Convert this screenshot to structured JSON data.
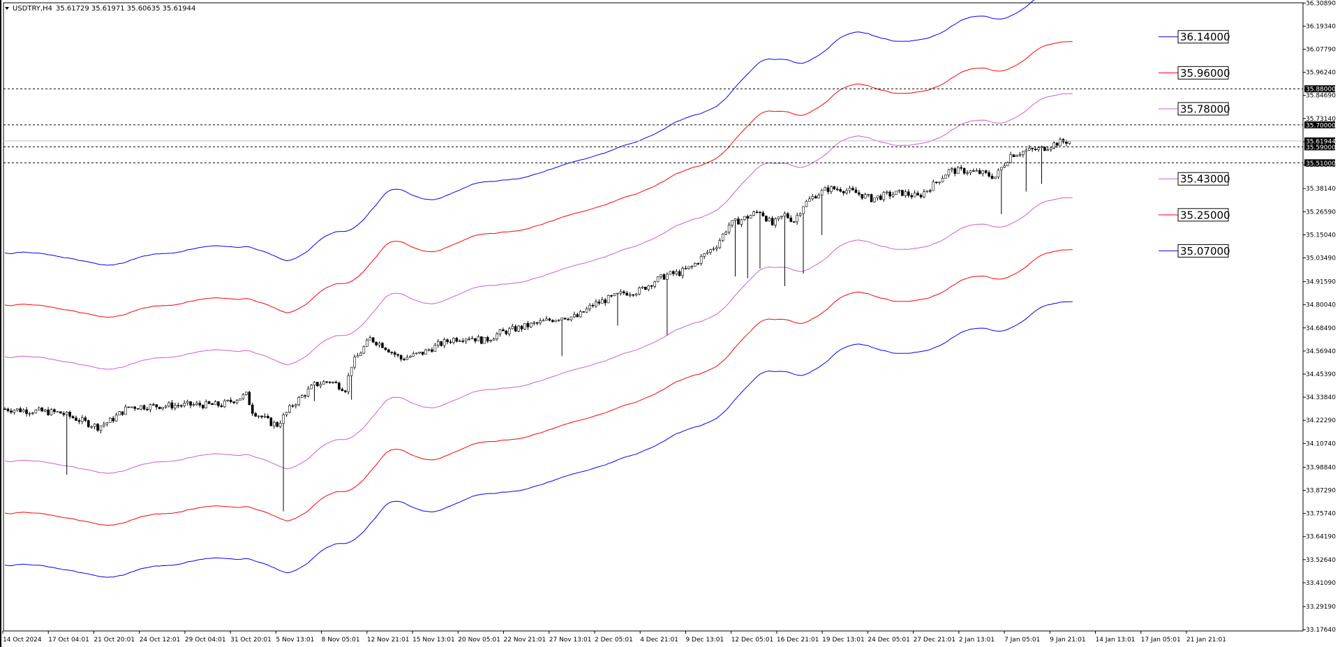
{
  "header": {
    "symbol": "USDTRY,H4",
    "ohlc": "35.61729 35.61971 35.60635 35.61944"
  },
  "chart_data": {
    "type": "candlestick",
    "title": "USDTRY,H4",
    "ohlc_last": {
      "open": 35.61729,
      "high": 35.61971,
      "low": 35.60635,
      "close": 35.61944
    },
    "ylim": [
      33.17,
      36.31
    ],
    "y_ticks": [
      "36.30890",
      "36.19340",
      "36.07790",
      "35.96240",
      "35.84690",
      "35.73140",
      "35.61590",
      "35.50040",
      "35.38140",
      "35.26590",
      "35.15040",
      "35.03490",
      "34.91590",
      "34.80040",
      "34.68490",
      "34.56940",
      "34.45390",
      "34.33840",
      "34.22290",
      "34.10740",
      "33.98840",
      "33.87290",
      "33.75740",
      "33.64190",
      "33.52640",
      "33.41090",
      "33.29190",
      "33.17640"
    ],
    "x_ticks": [
      "14 Oct 2024",
      "17 Oct 04:01",
      "21 Oct 20:01",
      "24 Oct 12:01",
      "29 Oct 04:01",
      "31 Oct 20:01",
      "5 Nov 13:01",
      "8 Nov 05:01",
      "12 Nov 21:01",
      "15 Nov 13:01",
      "20 Nov 05:01",
      "22 Nov 21:01",
      "27 Nov 13:01",
      "2 Dec 05:01",
      "4 Dec 21:01",
      "9 Dec 13:01",
      "12 Dec 05:01",
      "16 Dec 21:01",
      "19 Dec 13:01",
      "24 Dec 05:01",
      "27 Dec 21:01",
      "2 Jan 13:01",
      "7 Jan 05:01",
      "9 Jan 21:01",
      "14 Jan 13:01",
      "17 Jan 05:01",
      "21 Jan 21:01"
    ],
    "bars_count": 380,
    "price_path": [
      [
        0,
        34.28
      ],
      [
        18,
        34.26
      ],
      [
        30,
        34.19
      ],
      [
        34,
        34.22
      ],
      [
        40,
        34.29
      ],
      [
        60,
        34.3
      ],
      [
        70,
        34.3
      ],
      [
        78,
        34.35
      ],
      [
        80,
        34.27
      ],
      [
        86,
        34.21
      ],
      [
        88,
        34.2
      ],
      [
        93,
        34.3
      ],
      [
        100,
        34.4
      ],
      [
        105,
        34.42
      ],
      [
        110,
        34.38
      ],
      [
        112,
        34.5
      ],
      [
        118,
        34.63
      ],
      [
        122,
        34.6
      ],
      [
        128,
        34.53
      ],
      [
        135,
        34.56
      ],
      [
        140,
        34.6
      ],
      [
        145,
        34.63
      ],
      [
        150,
        34.64
      ],
      [
        155,
        34.62
      ],
      [
        160,
        34.66
      ],
      [
        170,
        34.7
      ],
      [
        180,
        34.74
      ],
      [
        185,
        34.74
      ],
      [
        190,
        34.8
      ],
      [
        200,
        34.86
      ],
      [
        205,
        34.87
      ],
      [
        210,
        34.92
      ],
      [
        214,
        34.95
      ],
      [
        218,
        34.96
      ],
      [
        222,
        34.99
      ],
      [
        226,
        35.05
      ],
      [
        230,
        35.1
      ],
      [
        234,
        35.2
      ],
      [
        240,
        35.24
      ],
      [
        244,
        35.27
      ],
      [
        248,
        35.2
      ],
      [
        252,
        35.25
      ],
      [
        255,
        35.22
      ],
      [
        258,
        35.3
      ],
      [
        262,
        35.35
      ],
      [
        266,
        35.38
      ],
      [
        270,
        35.38
      ],
      [
        275,
        35.36
      ],
      [
        280,
        35.33
      ],
      [
        285,
        35.35
      ],
      [
        290,
        35.36
      ],
      [
        295,
        35.34
      ],
      [
        300,
        35.4
      ],
      [
        305,
        35.47
      ],
      [
        310,
        35.47
      ],
      [
        315,
        35.46
      ],
      [
        320,
        35.44
      ],
      [
        325,
        35.55
      ],
      [
        330,
        35.57
      ],
      [
        335,
        35.58
      ],
      [
        340,
        35.61
      ],
      [
        344,
        35.62
      ]
    ],
    "bands": [
      {
        "offset": 0.78,
        "color": "#0000FF"
      },
      {
        "offset": 0.52,
        "color": "#FF0000"
      },
      {
        "offset": 0.26,
        "color": "#D35BD3"
      },
      {
        "offset": -0.26,
        "color": "#D35BD3"
      },
      {
        "offset": -0.52,
        "color": "#FF0000"
      },
      {
        "offset": -0.78,
        "color": "#0000FF"
      }
    ],
    "levels": [
      {
        "value": 36.14,
        "label": "36.14000",
        "color": "#0000FF"
      },
      {
        "value": 35.96,
        "label": "35.96000",
        "color": "#FF0000"
      },
      {
        "value": 35.78,
        "label": "35.78000",
        "color": "#D35BD3"
      },
      {
        "value": 35.43,
        "label": "35.43000",
        "color": "#D35BD3"
      },
      {
        "value": 35.25,
        "label": "35.25000",
        "color": "#FF0000"
      },
      {
        "value": 35.07,
        "label": "35.07000",
        "color": "#0000FF"
      }
    ],
    "hlines": [
      {
        "value": 35.88,
        "label": "35.88000"
      },
      {
        "value": 35.7,
        "label": "35.70000"
      },
      {
        "value": 35.59,
        "label": "35.59000"
      },
      {
        "value": 35.51,
        "label": "35.51000"
      }
    ],
    "current_price": {
      "value": 35.61944,
      "label": "35.61944"
    },
    "grid": false
  }
}
